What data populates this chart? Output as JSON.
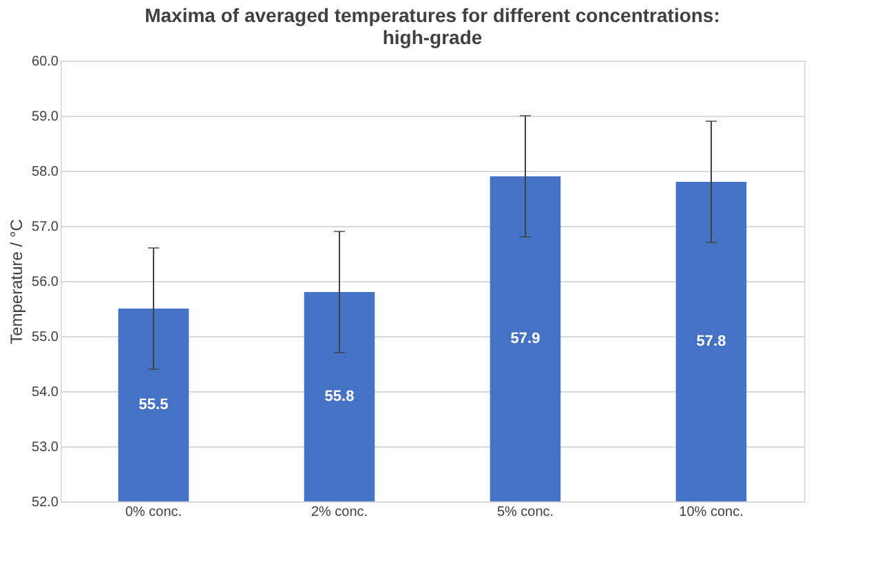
{
  "chart_data": {
    "type": "bar",
    "title": "Maxima of averaged temperatures for different concentrations: high-grade",
    "ylabel": "Temperature / °C",
    "categories": [
      "0% conc.",
      "2% conc.",
      "5% conc.",
      "10% conc."
    ],
    "values": [
      55.5,
      55.8,
      57.9,
      57.8
    ],
    "errors": [
      1.1,
      1.1,
      1.1,
      1.1
    ],
    "color": "#4472c4",
    "ylim": [
      52,
      60
    ],
    "yticks": [
      {
        "value": 52,
        "label": "52.0"
      },
      {
        "value": 53,
        "label": "53.0"
      },
      {
        "value": 54,
        "label": "54.0"
      },
      {
        "value": 55,
        "label": "55.0"
      },
      {
        "value": 56,
        "label": "56.0"
      },
      {
        "value": 57,
        "label": "57.0"
      },
      {
        "value": 58,
        "label": "58.0"
      },
      {
        "value": 59,
        "label": "59.0"
      },
      {
        "value": 60,
        "label": "60.0"
      }
    ],
    "grid": "y",
    "data_labels": true
  }
}
